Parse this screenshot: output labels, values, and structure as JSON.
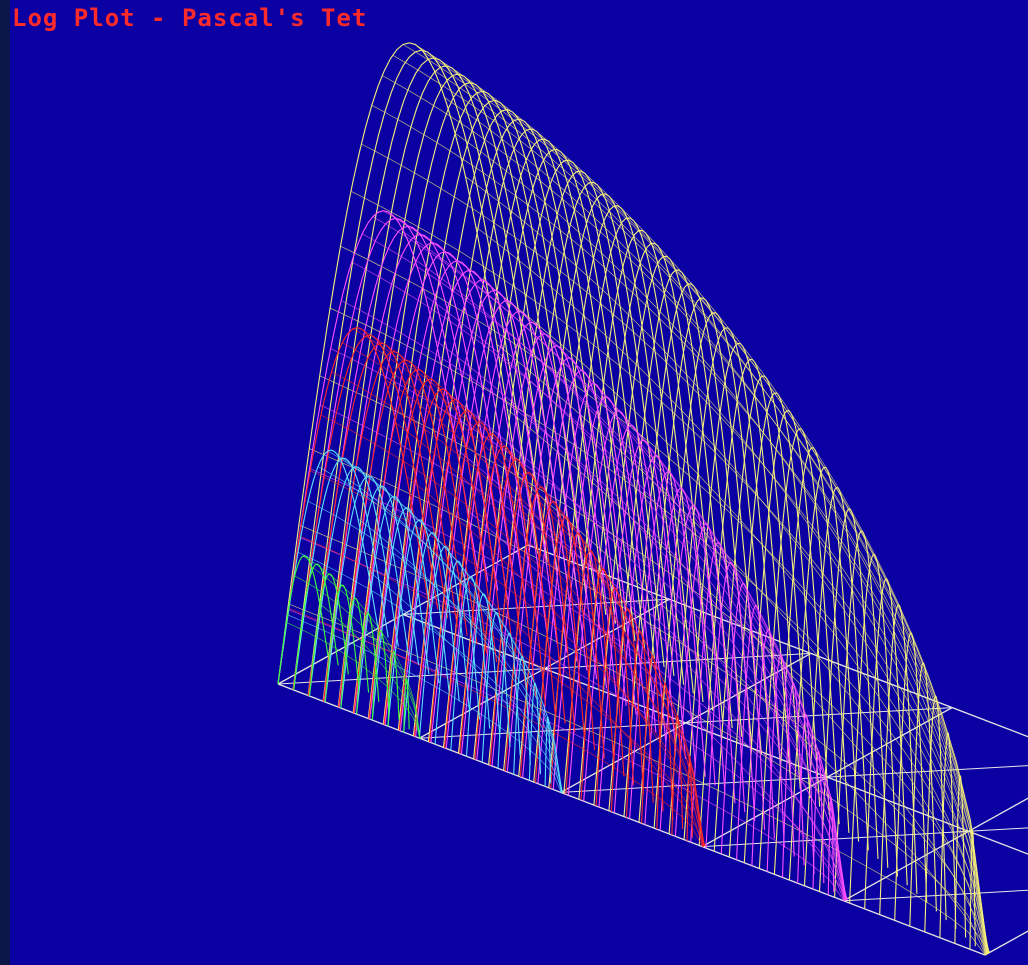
{
  "title": "Log Plot - Pascal's Tet",
  "colors": {
    "background": "#0b00a2",
    "frame": "#0a1548",
    "title": "#ff2a2a",
    "grid": "#e6e6e6"
  },
  "chart_data": {
    "type": "surface-3d-wireframe",
    "title": "Log Plot - Pascal's Tet",
    "xlabel": "",
    "ylabel": "",
    "zlabel": "",
    "scale": "log",
    "base_grid": {
      "divisions_long_edge": 5,
      "divisions_short_edge": 2
    },
    "surfaces": [
      {
        "color": "#f5f07a",
        "relative_height": 1.0,
        "relative_extent": 1.0
      },
      {
        "color": "#ff50ff",
        "relative_height": 0.73,
        "relative_extent": 0.8
      },
      {
        "color": "#ff2828",
        "relative_height": 0.55,
        "relative_extent": 0.6
      },
      {
        "color": "#5ee0ff",
        "relative_height": 0.36,
        "relative_extent": 0.4
      },
      {
        "color": "#3cff3c",
        "relative_height": 0.2,
        "relative_extent": 0.2
      }
    ],
    "grid": true
  }
}
